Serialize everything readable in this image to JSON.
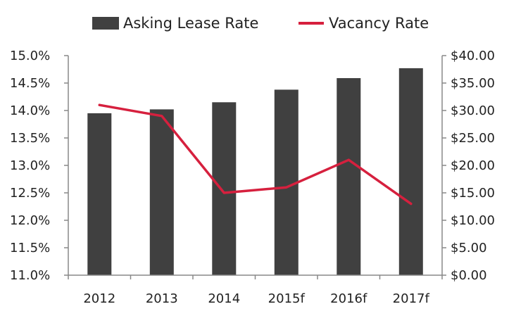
{
  "chart_data": {
    "type": "bar",
    "categories": [
      "2012",
      "2013",
      "2014",
      "2015f",
      "2016f",
      "2017f"
    ],
    "series": [
      {
        "name": "Asking Lease Rate",
        "type": "bar",
        "axis": "right",
        "color": "#404040",
        "values": [
          29.5,
          30.2,
          31.5,
          33.8,
          35.9,
          37.7
        ]
      },
      {
        "name": "Vacancy Rate",
        "type": "line",
        "axis": "left",
        "color": "#d6203e",
        "values": [
          14.1,
          13.9,
          12.5,
          12.6,
          13.1,
          12.3
        ]
      }
    ],
    "y_left": {
      "range": [
        11.0,
        15.0
      ],
      "ticks": [
        "11.0%",
        "11.5%",
        "12.0%",
        "12.5%",
        "13.0%",
        "13.5%",
        "14.0%",
        "14.5%",
        "15.0%"
      ]
    },
    "y_right": {
      "range": [
        0,
        40
      ],
      "ticks": [
        "$0.00",
        "$5.00",
        "$10.00",
        "$15.00",
        "$20.00",
        "$25.00",
        "$30.00",
        "$35.00",
        "$40.00"
      ]
    },
    "grid": false,
    "legend_position": "top"
  }
}
